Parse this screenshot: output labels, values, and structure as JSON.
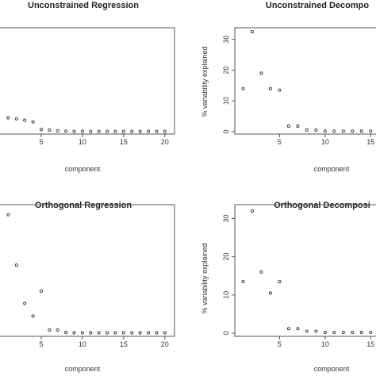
{
  "chart_data": [
    {
      "type": "scatter",
      "title": "Unconstrained Regression",
      "xlabel": "component",
      "ylabel": "",
      "xlim": [
        0,
        20.5
      ],
      "ylim": [
        0,
        33
      ],
      "xticks": [
        "5",
        "10",
        "15",
        "20"
      ],
      "yticks": [],
      "x": [
        1,
        2,
        3,
        4,
        5,
        6,
        7,
        8,
        9,
        10,
        11,
        12,
        13,
        14,
        15,
        16,
        17,
        18,
        19,
        20
      ],
      "y": [
        4.5,
        4.2,
        3.7,
        3.2,
        0.7,
        0.5,
        0.3,
        0.2,
        0.1,
        0.1,
        0.1,
        0.1,
        0.1,
        0.1,
        0.1,
        0.1,
        0.1,
        0.1,
        0.1,
        0.1
      ]
    },
    {
      "type": "scatter",
      "title": "Unconstrained Decompo",
      "xlabel": "component",
      "ylabel": "% variability explained",
      "xlim": [
        0,
        15.5
      ],
      "ylim": [
        0,
        33
      ],
      "xticks": [
        "5",
        "10",
        "15"
      ],
      "yticks": [
        "0",
        "10",
        "20",
        "30"
      ],
      "x": [
        1,
        2,
        3,
        4,
        5,
        6,
        7,
        8,
        9,
        10,
        11,
        12,
        13,
        14,
        15
      ],
      "y": [
        14,
        32.5,
        19,
        14,
        13.5,
        1.8,
        1.8,
        0.5,
        0.5,
        0.2,
        0.2,
        0.2,
        0.2,
        0.2,
        0.2
      ]
    },
    {
      "type": "scatter",
      "title": "Orthogonal Regression",
      "xlabel": "component",
      "ylabel": "",
      "xlim": [
        0,
        20.5
      ],
      "ylim": [
        0,
        33
      ],
      "xticks": [
        "5",
        "10",
        "15",
        "20"
      ],
      "yticks": [],
      "x": [
        1,
        2,
        3,
        4,
        5,
        6,
        7,
        8,
        9,
        10,
        11,
        12,
        13,
        14,
        15,
        16,
        17,
        18,
        19,
        20
      ],
      "y": [
        31,
        17.8,
        7.8,
        4.5,
        11,
        0.8,
        0.8,
        0.2,
        0.1,
        0.1,
        0.1,
        0.1,
        0.1,
        0.1,
        0.1,
        0.1,
        0.1,
        0.1,
        0.1,
        0.1
      ]
    },
    {
      "type": "scatter",
      "title": "Orthogonal Decomposi",
      "xlabel": "component",
      "ylabel": "% variability explained",
      "xlim": [
        0,
        15.5
      ],
      "ylim": [
        0,
        33
      ],
      "xticks": [
        "5",
        "10",
        "15"
      ],
      "yticks": [
        "0",
        "10",
        "20",
        "30"
      ],
      "x": [
        1,
        2,
        3,
        4,
        5,
        6,
        7,
        8,
        9,
        10,
        11,
        12,
        13,
        14,
        15
      ],
      "y": [
        13.5,
        32,
        16,
        10.5,
        13.5,
        1.2,
        1.2,
        0.5,
        0.5,
        0.2,
        0.2,
        0.2,
        0.2,
        0.2,
        0.2
      ]
    }
  ]
}
